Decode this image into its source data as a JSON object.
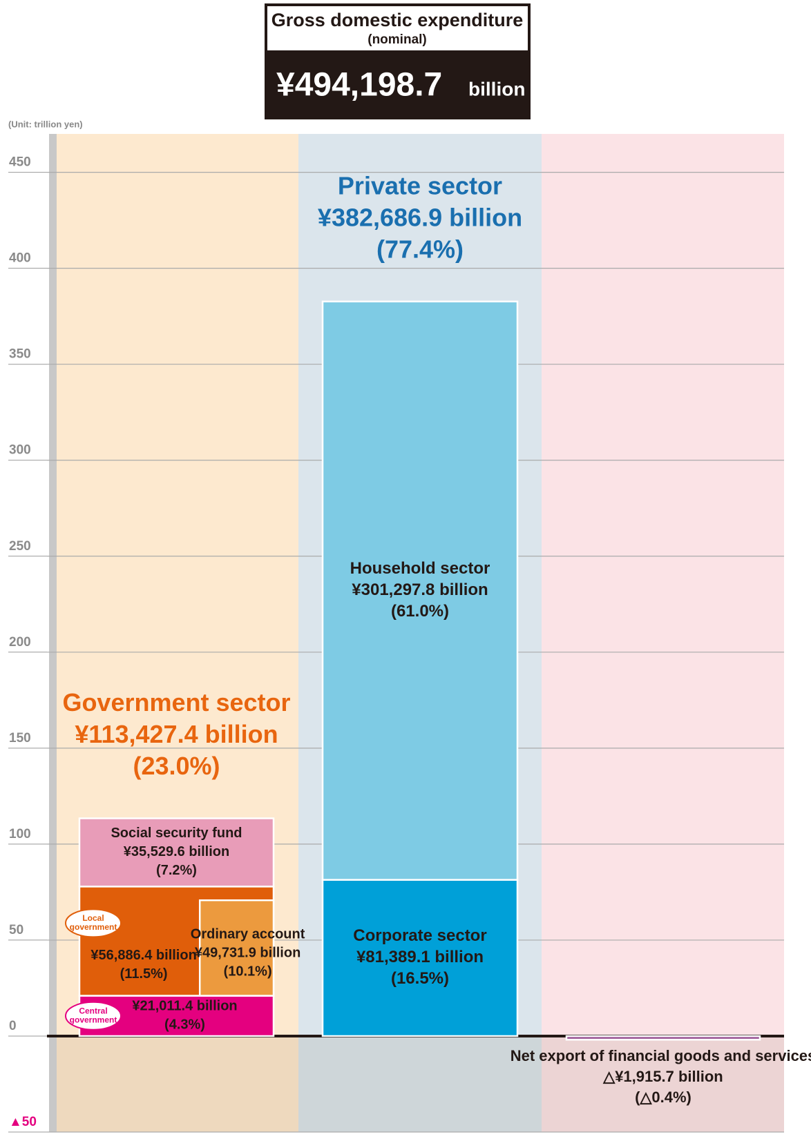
{
  "header": {
    "title": "Gross domestic expenditure",
    "subtitle": "(nominal)",
    "total_label": "¥494,198.7",
    "total_unit": "billion"
  },
  "chart_data": {
    "type": "stacked_bar",
    "unit_label": "(Unit: trillion yen)",
    "ylim": [
      -50,
      470
    ],
    "yticks": [
      {
        "value": -50,
        "label": "▲50"
      },
      0,
      50,
      100,
      150,
      200,
      250,
      300,
      350,
      400,
      450
    ],
    "grid": true,
    "groups": [
      {
        "name": "Government sector",
        "value_label": "¥113,427.4 billion",
        "share_label": "(23.0%)",
        "color": "#e8650f",
        "band_color": "#fde9cf",
        "segments": [
          {
            "badge": [
              "Central",
              "government"
            ],
            "value": 21.0114,
            "value_label": "¥21,011.4 billion",
            "share_label": "(4.3%)",
            "color": "#e4007f"
          },
          {
            "badge": [
              "Local",
              "government"
            ],
            "value": 56.8864,
            "value_label": "¥56,886.4 billion",
            "share_label": "(11.5%)",
            "color": "#e05e0a",
            "parts": [
              {
                "name": "Ordinary account",
                "value": 49.7319,
                "value_label": "¥49,731.9 billion",
                "share_label": "(10.1%)",
                "color": "#ec9a3e"
              }
            ]
          },
          {
            "name": "Social security fund",
            "value": 35.5296,
            "value_label": "¥35,529.6 billion",
            "share_label": "(7.2%)",
            "color": "#e89cb8"
          }
        ]
      },
      {
        "name": "Private sector",
        "value_label": "¥382,686.9 billion",
        "share_label": "(77.4%)",
        "color": "#1a6faf",
        "band_color": "#dbe5ec",
        "segments": [
          {
            "name": "Corporate sector",
            "value": 81.3891,
            "value_label": "¥81,389.1 billion",
            "share_label": "(16.5%)",
            "color": "#00a0d8"
          },
          {
            "name": "Household sector",
            "value": 301.2978,
            "value_label": "¥301,297.8 billion",
            "share_label": "(61.0%)",
            "color": "#7ecbe4"
          }
        ]
      },
      {
        "band_color": "#fbe3e6",
        "segments": [
          {
            "name": "Net export of financial goods and services",
            "value": -1.9157,
            "value_label": "△¥1,915.7 billion",
            "share_label": "(△0.4%)",
            "color": "#a0609c"
          }
        ]
      }
    ]
  }
}
